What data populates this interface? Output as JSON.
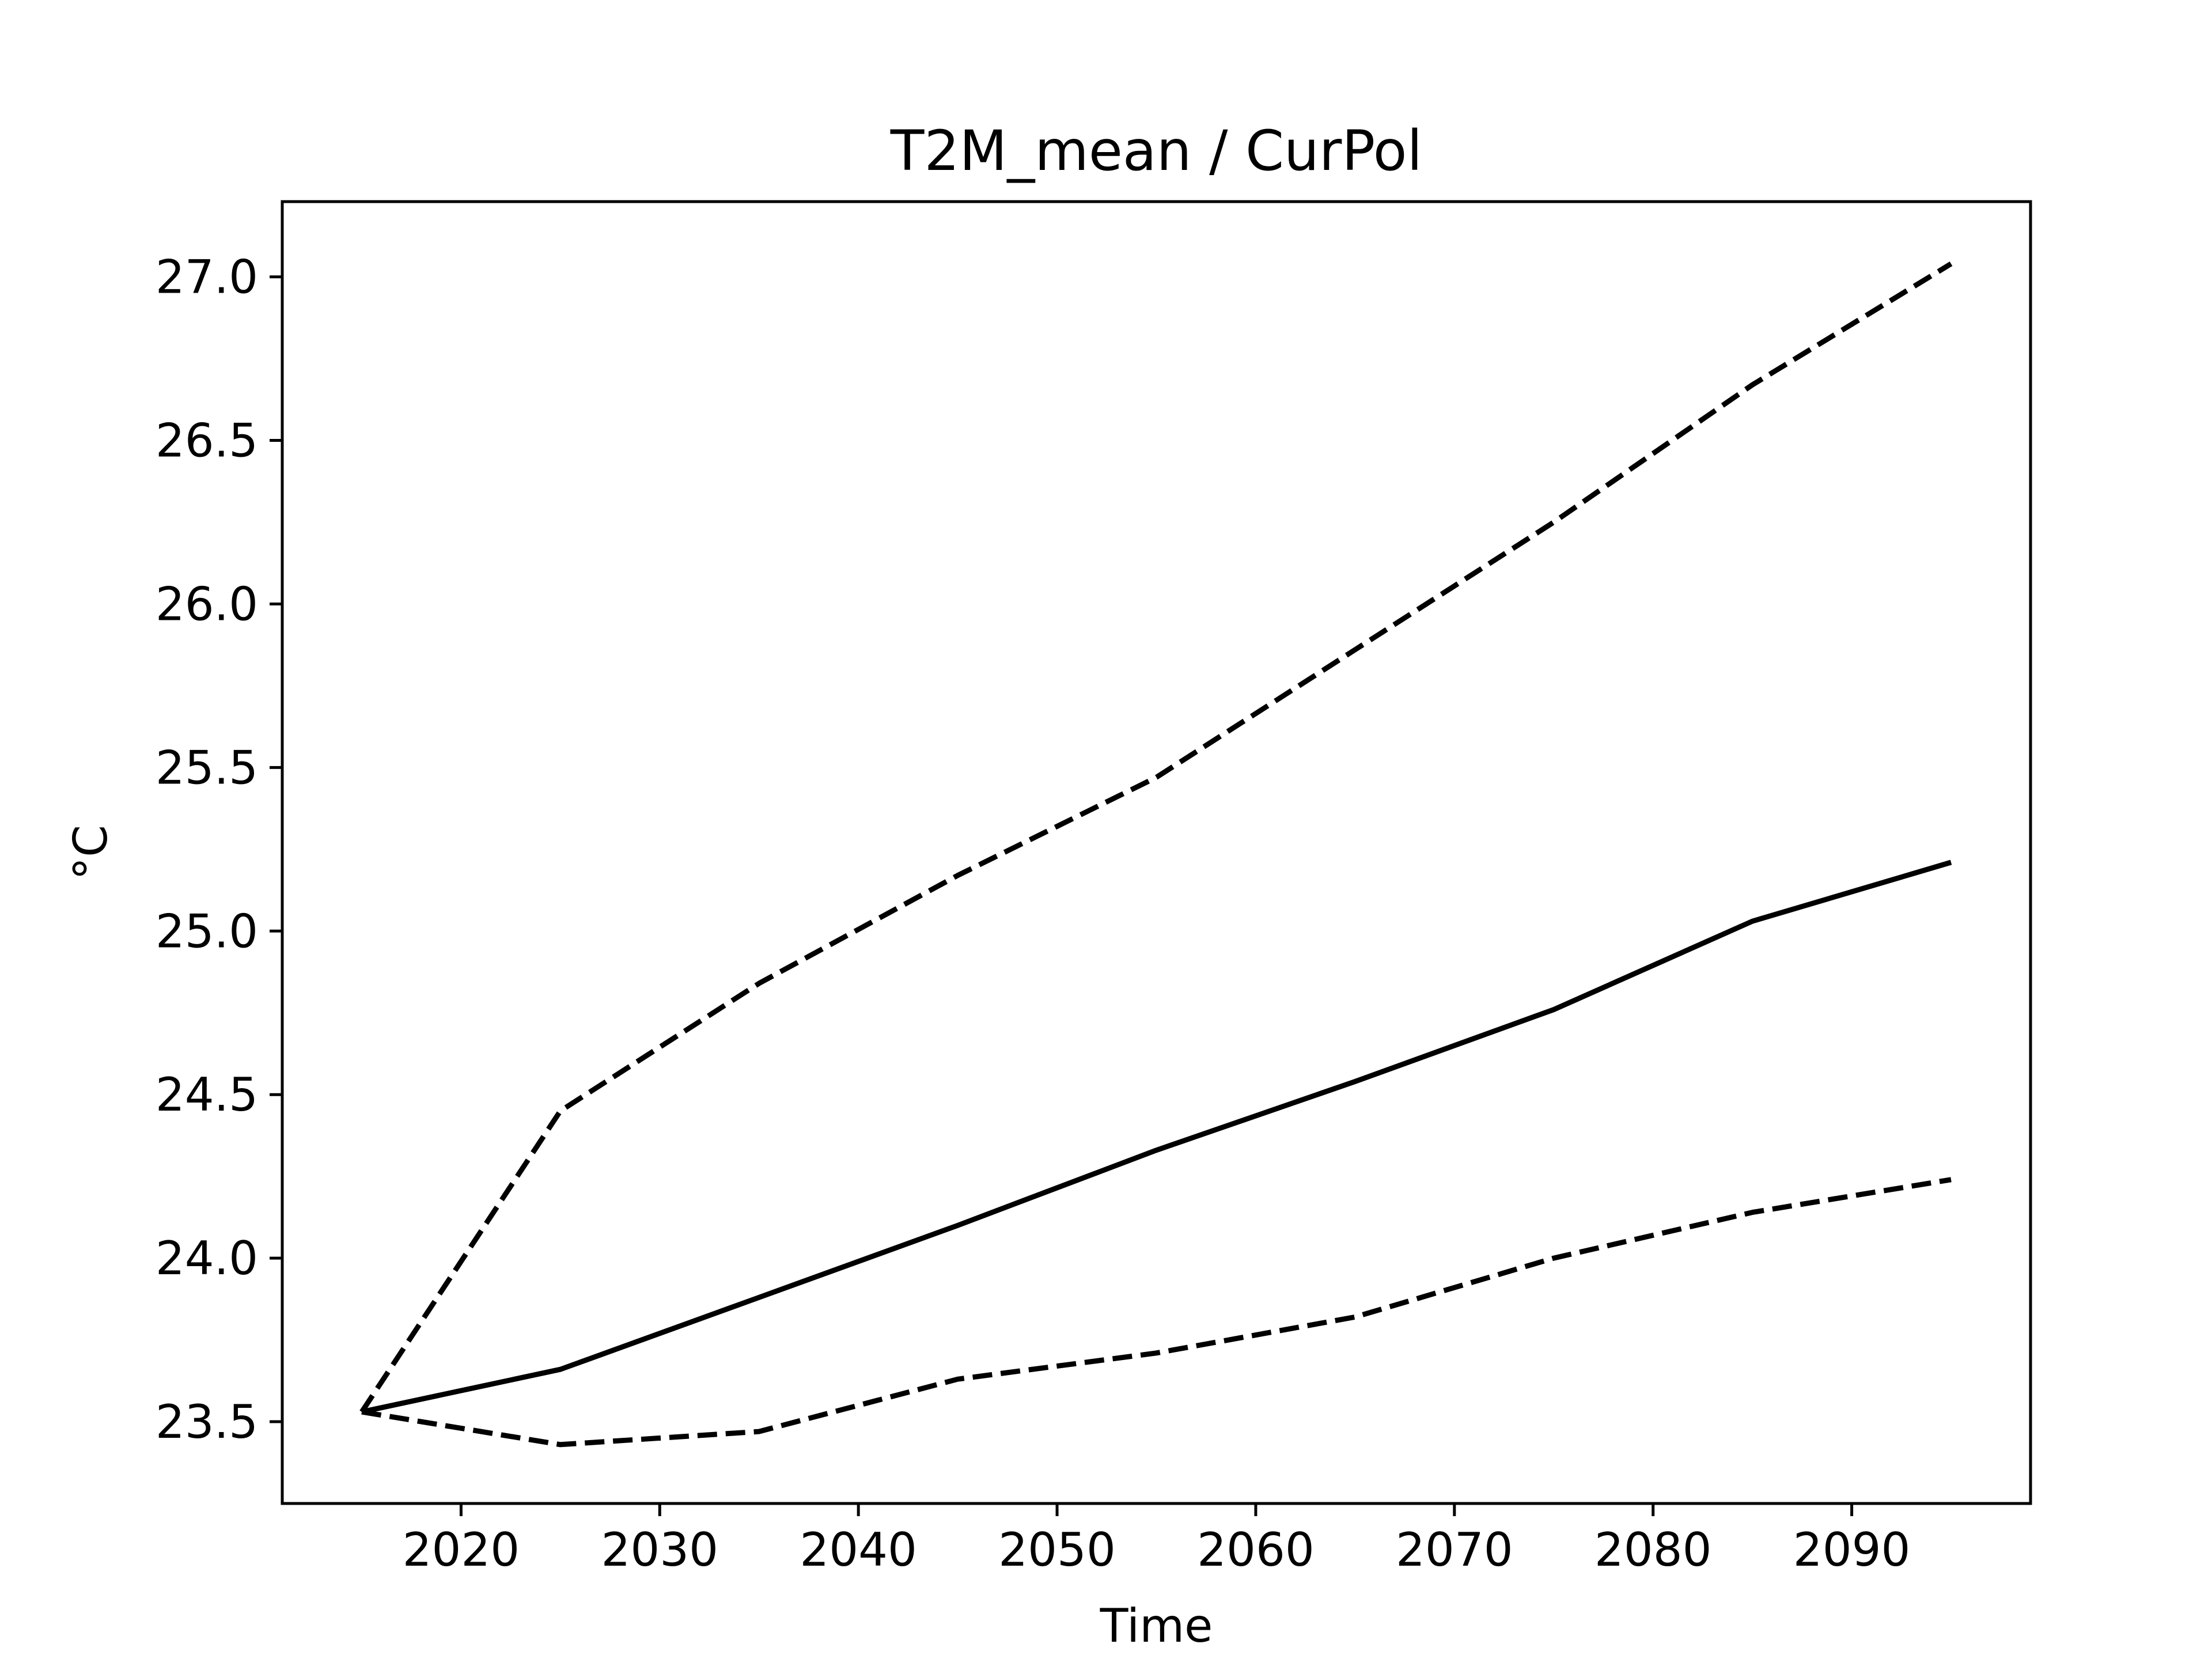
{
  "chart_data": {
    "type": "line",
    "title": "T2M_mean / CurPol",
    "xlabel": "Time",
    "ylabel": "°C",
    "xlim": [
      2011,
      2099
    ],
    "ylim": [
      23.25,
      27.23
    ],
    "xticks": [
      2020,
      2030,
      2040,
      2050,
      2060,
      2070,
      2080,
      2090
    ],
    "xtick_labels": [
      "2020",
      "2030",
      "2040",
      "2050",
      "2060",
      "2070",
      "2080",
      "2090"
    ],
    "yticks": [
      23.5,
      24.0,
      24.5,
      25.0,
      25.5,
      26.0,
      26.5,
      27.0
    ],
    "ytick_labels": [
      "23.5",
      "24.0",
      "24.5",
      "25.0",
      "25.5",
      "26.0",
      "26.5",
      "27.0"
    ],
    "grid": false,
    "x": [
      2015,
      2025,
      2035,
      2045,
      2055,
      2065,
      2075,
      2085,
      2095
    ],
    "series": [
      {
        "style": "dashed",
        "values": [
          23.53,
          24.45,
          24.84,
          25.17,
          25.47,
          25.86,
          26.25,
          26.67,
          27.04
        ]
      },
      {
        "style": "solid",
        "values": [
          23.53,
          23.66,
          23.88,
          24.1,
          24.33,
          24.54,
          24.76,
          25.03,
          25.21
        ]
      },
      {
        "style": "dashed",
        "values": [
          23.53,
          23.43,
          23.47,
          23.63,
          23.71,
          23.82,
          24.0,
          24.14,
          24.24
        ]
      }
    ],
    "colors": {
      "line": "#000000",
      "frame": "#000000",
      "background": "#ffffff"
    }
  }
}
